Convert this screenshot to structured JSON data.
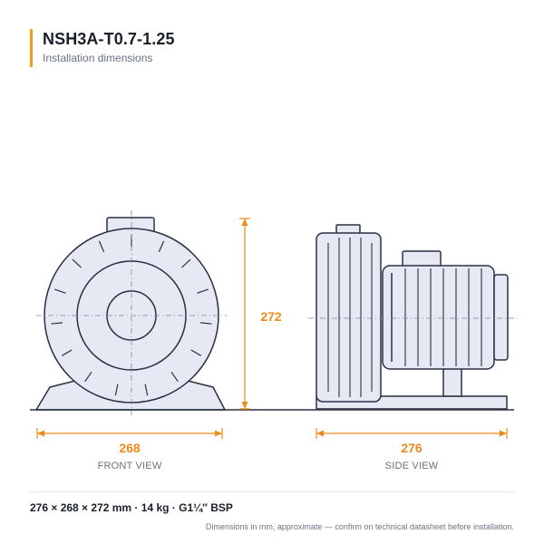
{
  "header": {
    "title": "NSH3A-T0.7-1.25",
    "subtitle": "Installation dimensions"
  },
  "views": {
    "front": {
      "label": "FRONT VIEW",
      "width_dimension": "268",
      "height_dimension": "272"
    },
    "side": {
      "label": "SIDE VIEW",
      "length_dimension": "276"
    }
  },
  "specs": {
    "dimensions": "276 × 268 × 272 mm",
    "weight": "14 kg",
    "connection": "G1¼″ BSP",
    "separator": " · "
  },
  "footnote": "Dimensions in mm, approximate — confirm on technical datasheet before installation.",
  "colors": {
    "accent": "#f39c12",
    "dimension": "#ee8a1a",
    "outline": "#2a3042",
    "body_fill": "#e6e9f4"
  }
}
